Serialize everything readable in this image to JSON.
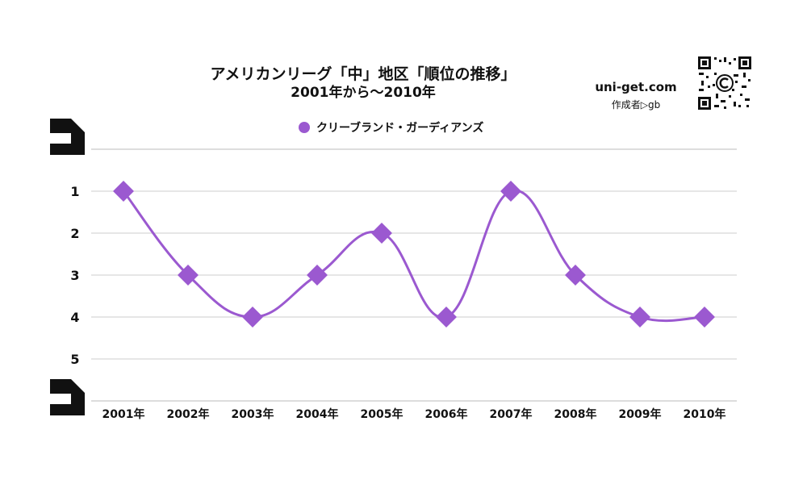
{
  "title": "アメリカンリーグ「中」地区「順位の推移」",
  "subtitle": "2001年から〜2010年",
  "brand": {
    "site": "uni-get.com",
    "author": "作成者▷gb"
  },
  "colors": {
    "series": "#9b59d0",
    "marker": "#9b59d0",
    "grid": "#cccccc",
    "text": "#111111"
  },
  "icons": {
    "qr": "qr-code-icon",
    "corner": "corner-bracket-icon"
  },
  "chart_data": {
    "type": "line",
    "title": "アメリカンリーグ「中」地区「順位の推移」",
    "subtitle": "2001年から〜2010年",
    "categories": [
      "2001年",
      "2002年",
      "2003年",
      "2004年",
      "2005年",
      "2006年",
      "2007年",
      "2008年",
      "2009年",
      "2010年"
    ],
    "series": [
      {
        "name": "クリーブランド・ガーディアンズ",
        "values": [
          1,
          3,
          4,
          3,
          2,
          4,
          1,
          3,
          4,
          4
        ]
      }
    ],
    "y_ticks": [
      1,
      2,
      3,
      4,
      5
    ],
    "ylim": [
      0,
      6
    ],
    "y_reversed": true,
    "grid": true,
    "legend_position": "top-center",
    "marker": "diamond",
    "line_style": "smooth"
  }
}
